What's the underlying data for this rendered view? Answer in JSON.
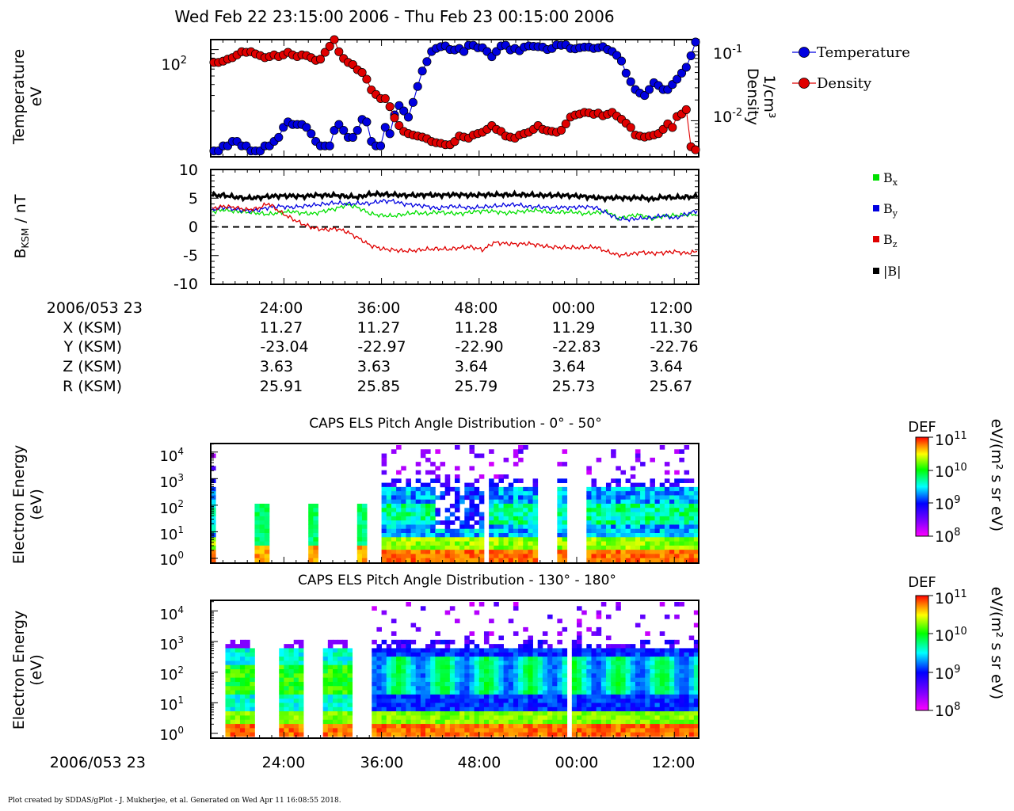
{
  "title": "Wed Feb 22 23:15:00 2006 - Thu Feb 23 00:15:00 2006",
  "footer": "Plot created by SDDAS/gPlot - J. Mukherjee, et al.  Generated on Wed Apr 11 16:08:55 2018.",
  "chart_data": [
    {
      "type": "line",
      "panel": "plasma",
      "xlabel": "",
      "ylabel": "Temperature",
      "ylabel_unit": "eV",
      "y2label": "Density",
      "y2label_unit": "1/cm³",
      "y_scale": "log",
      "y2_scale": "log",
      "ylim": [
        6,
        130
      ],
      "y2lim": [
        0.003,
        0.15
      ],
      "ytick_labels": [
        {
          "base": "10",
          "exp": "2"
        }
      ],
      "y2tick_labels": [
        {
          "base": "10",
          "exp": "-1"
        },
        {
          "base": "10",
          "exp": "-2"
        }
      ],
      "legend": [
        "Temperature",
        "Density"
      ],
      "colors": {
        "temperature": "#0000e0",
        "density": "#e00000"
      },
      "legend_position": "right",
      "series": [
        {
          "name": "Temperature",
          "axis": "left",
          "values": [
            7,
            7,
            8,
            8,
            9,
            9,
            8,
            8,
            7,
            7,
            7,
            8,
            8,
            9,
            10,
            13,
            15,
            14,
            14,
            14,
            13,
            11,
            9,
            8,
            8,
            8,
            12,
            14,
            12,
            10,
            10,
            12,
            16,
            15,
            9,
            8,
            8,
            13,
            11,
            18,
            23,
            20,
            17,
            25,
            38,
            57,
            73,
            95,
            103,
            108,
            110,
            100,
            99,
            103,
            95,
            112,
            112,
            105,
            105,
            95,
            83,
            95,
            110,
            112,
            99,
            103,
            97,
            107,
            110,
            109,
            108,
            107,
            100,
            103,
            113,
            112,
            113,
            103,
            102,
            105,
            107,
            107,
            103,
            105,
            108,
            100,
            95,
            86,
            74,
            54,
            43,
            35,
            32,
            30,
            35,
            42,
            39,
            35,
            35,
            40,
            46,
            54,
            63,
            85,
            122
          ]
        },
        {
          "name": "Density",
          "axis": "right",
          "values": [
            0.07,
            0.07,
            0.073,
            0.078,
            0.082,
            0.09,
            0.1,
            0.098,
            0.1,
            0.093,
            0.088,
            0.082,
            0.085,
            0.09,
            0.085,
            0.09,
            0.098,
            0.09,
            0.085,
            0.09,
            0.088,
            0.082,
            0.075,
            0.078,
            0.098,
            0.12,
            0.15,
            0.1,
            0.08,
            0.07,
            0.065,
            0.055,
            0.05,
            0.04,
            0.028,
            0.024,
            0.021,
            0.021,
            0.016,
            0.011,
            0.0085,
            0.007,
            0.0065,
            0.0062,
            0.006,
            0.0058,
            0.0055,
            0.005,
            0.0048,
            0.0047,
            0.0045,
            0.0045,
            0.005,
            0.006,
            0.0058,
            0.0056,
            0.0062,
            0.0065,
            0.0068,
            0.0075,
            0.0085,
            0.0075,
            0.007,
            0.006,
            0.0058,
            0.0056,
            0.0062,
            0.0065,
            0.0068,
            0.0075,
            0.0085,
            0.0075,
            0.0072,
            0.007,
            0.0068,
            0.0073,
            0.009,
            0.0113,
            0.0121,
            0.0125,
            0.0132,
            0.013,
            0.0124,
            0.0129,
            0.0118,
            0.0124,
            0.0132,
            0.0117,
            0.0105,
            0.0092,
            0.008,
            0.0062,
            0.006,
            0.0058,
            0.006,
            0.0062,
            0.0065,
            0.0075,
            0.009,
            0.008,
            0.0115,
            0.0125,
            0.0145,
            0.0042,
            0.0038
          ]
        }
      ]
    },
    {
      "type": "line",
      "panel": "magnetic",
      "xlabel": "",
      "ylabel": "B_KSM / nT",
      "ylim": [
        -10,
        10
      ],
      "yticks": [
        10,
        5,
        0,
        -5,
        -10
      ],
      "ytick_labels": [
        "10",
        "5",
        "0",
        "-5",
        "-10"
      ],
      "zero_line": "dashed",
      "legend_position": "right",
      "series": [
        {
          "name": "Bx",
          "color": "#00e000",
          "values": [
            2.6,
            3.0,
            2.7,
            2.6,
            2.4,
            2.2,
            2.5,
            2.7,
            2.4,
            2.3,
            2.8,
            3.2,
            3.9,
            3.3,
            2.3,
            2.0,
            1.9,
            2.2,
            2.5,
            2.3,
            2.6,
            2.4,
            2.3,
            2.6,
            2.8,
            2.7,
            2.4,
            2.6,
            2.8,
            2.9,
            2.5,
            2.6,
            2.6,
            2.3,
            2.5,
            2.7,
            1.5,
            1.9,
            2.1,
            1.4,
            1.9,
            2.0,
            2.1,
            2.2
          ]
        },
        {
          "name": "By",
          "color": "#0000e0",
          "values": [
            3.0,
            3.4,
            3.1,
            2.8,
            2.9,
            3.4,
            3.6,
            3.4,
            3.6,
            3.8,
            4.0,
            4.2,
            4.0,
            4.1,
            4.1,
            4.5,
            4.5,
            4.0,
            3.8,
            3.6,
            3.2,
            3.6,
            3.5,
            3.3,
            3.5,
            3.6,
            3.8,
            3.9,
            3.5,
            3.5,
            3.3,
            3.4,
            3.4,
            3.5,
            3.4,
            2.4,
            1.4,
            1.3,
            1.5,
            1.6,
            2.0,
            1.5,
            2.2,
            2.8
          ]
        },
        {
          "name": "Bz",
          "color": "#e00000",
          "values": [
            3.2,
            3.6,
            3.4,
            3.0,
            3.2,
            4.1,
            2.6,
            1.5,
            0.5,
            -0.2,
            -0.5,
            -0.3,
            -0.9,
            -2.0,
            -3.2,
            -3.8,
            -4.0,
            -4.2,
            -4.1,
            -3.9,
            -3.8,
            -3.9,
            -3.6,
            -3.5,
            -4.0,
            -2.7,
            -2.9,
            -3.0,
            -2.9,
            -3.2,
            -3.5,
            -3.6,
            -3.6,
            -3.6,
            -3.5,
            -4.3,
            -4.9,
            -4.8,
            -4.4,
            -4.6,
            -4.5,
            -4.3,
            -4.6,
            -4.3
          ]
        },
        {
          "name": "|B|",
          "color": "#000000",
          "values": [
            5.5,
            5.5,
            5.2,
            5.0,
            5.1,
            5.3,
            5.4,
            5.4,
            5.3,
            5.5,
            5.5,
            5.5,
            5.3,
            5.2,
            5.7,
            5.7,
            5.6,
            5.5,
            5.5,
            5.6,
            5.5,
            5.6,
            5.6,
            5.5,
            5.6,
            5.6,
            5.6,
            5.6,
            5.6,
            5.5,
            5.5,
            5.5,
            5.4,
            5.3,
            5.1,
            5.0,
            5.1,
            5.0,
            5.1,
            4.8,
            5.2,
            5.1,
            5.2,
            5.3
          ]
        }
      ],
      "legend": [
        {
          "base": "B",
          "sub": "x",
          "color": "#00e000"
        },
        {
          "base": "B",
          "sub": "y",
          "color": "#0000e0"
        },
        {
          "base": "B",
          "sub": "z",
          "color": "#e00000"
        },
        {
          "base": "|B|",
          "sub": "",
          "color": "#000000"
        }
      ]
    },
    {
      "type": "heatmap",
      "panel": "els-0-50",
      "title": "CAPS ELS Pitch Angle Distribution - 0° - 50°",
      "ylabel": "Electron Energy",
      "ylabel_unit": "(eV)",
      "y_scale": "log",
      "ytick_labels": [
        {
          "base": "10",
          "exp": "4"
        },
        {
          "base": "10",
          "exp": "3"
        },
        {
          "base": "10",
          "exp": "2"
        },
        {
          "base": "10",
          "exp": "1"
        },
        {
          "base": "10",
          "exp": "0"
        }
      ],
      "colorbar": {
        "label": "DEF",
        "unit_label": "eV/(m² s sr eV)",
        "range": [
          100000000.0,
          100000000000.0
        ],
        "tick_labels": [
          {
            "base": "10",
            "exp": "11"
          },
          {
            "base": "10",
            "exp": "10"
          },
          {
            "base": "10",
            "exp": "9"
          },
          {
            "base": "10",
            "exp": "8"
          }
        ]
      }
    },
    {
      "type": "heatmap",
      "panel": "els-130-180",
      "title": "CAPS ELS Pitch Angle Distribution - 130° - 180°",
      "ylabel": "Electron Energy",
      "ylabel_unit": "(eV)",
      "y_scale": "log",
      "ytick_labels": [
        {
          "base": "10",
          "exp": "4"
        },
        {
          "base": "10",
          "exp": "3"
        },
        {
          "base": "10",
          "exp": "2"
        },
        {
          "base": "10",
          "exp": "1"
        },
        {
          "base": "10",
          "exp": "0"
        }
      ],
      "colorbar": {
        "label": "DEF",
        "unit_label": "eV/(m² s sr eV)",
        "range": [
          100000000.0,
          100000000000.0
        ],
        "tick_labels": [
          {
            "base": "10",
            "exp": "11"
          },
          {
            "base": "10",
            "exp": "10"
          },
          {
            "base": "10",
            "exp": "9"
          },
          {
            "base": "10",
            "exp": "8"
          }
        ]
      }
    }
  ],
  "ephemeris": {
    "label": "2006/053 23",
    "times": [
      "24:00",
      "36:00",
      "48:00",
      "00:00",
      "12:00"
    ],
    "rows": [
      {
        "label": "X (KSM)",
        "values": [
          "11.27",
          "11.27",
          "11.28",
          "11.29",
          "11.30"
        ]
      },
      {
        "label": "Y (KSM)",
        "values": [
          "-23.04",
          "-22.97",
          "-22.90",
          "-22.83",
          "-22.76"
        ]
      },
      {
        "label": "Z (KSM)",
        "values": [
          "3.63",
          "3.63",
          "3.64",
          "3.64",
          "3.64"
        ]
      },
      {
        "label": "R (KSM)",
        "values": [
          "25.91",
          "25.85",
          "25.79",
          "25.73",
          "25.67"
        ]
      }
    ]
  },
  "bottom_axis": {
    "label": "2006/053 23",
    "times": [
      "24:00",
      "36:00",
      "48:00",
      "00:00",
      "12:00"
    ]
  }
}
